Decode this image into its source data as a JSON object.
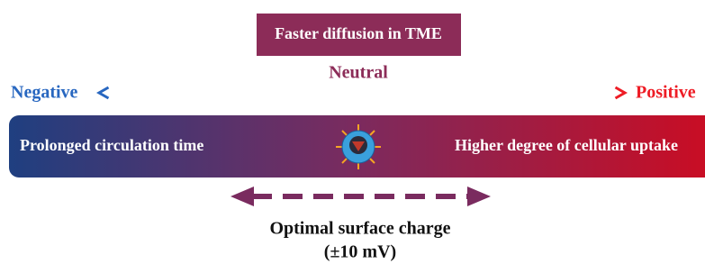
{
  "header": {
    "title": "Faster diffusion in TME"
  },
  "scale": {
    "center_label": "Neutral",
    "left_label": "Negative",
    "right_label": "Positive"
  },
  "bar": {
    "left_text": "Prolonged circulation time",
    "right_text": "Higher degree of cellular uptake"
  },
  "footer": {
    "title": "Optimal surface charge",
    "subtitle": "(±10 mV)"
  }
}
